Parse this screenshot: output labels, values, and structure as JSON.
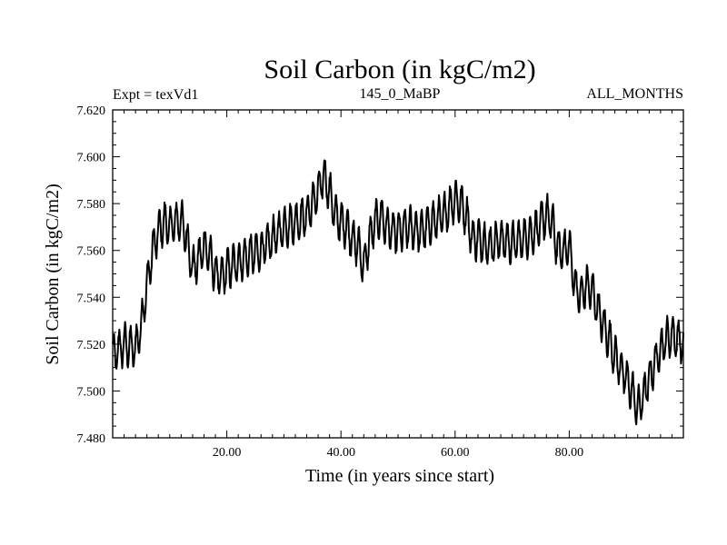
{
  "chart_data": {
    "type": "line",
    "title": "Soil Carbon (in kgC/m2)",
    "subtitle_left": "Expt = texVd1",
    "subtitle_center": "145_0_MaBP",
    "subtitle_right": "ALL_MONTHS",
    "xlabel": "Time (in years since start)",
    "ylabel": "Soil Carbon (in kgC/m2)",
    "xlim": [
      0,
      100
    ],
    "ylim": [
      7.48,
      7.62
    ],
    "x_ticks": [
      20,
      40,
      60,
      80
    ],
    "x_tick_labels": [
      "20.00",
      "40.00",
      "60.00",
      "80.00"
    ],
    "y_ticks": [
      7.48,
      7.5,
      7.52,
      7.54,
      7.56,
      7.58,
      7.6,
      7.62
    ],
    "y_tick_labels": [
      "7.480",
      "7.500",
      "7.520",
      "7.540",
      "7.560",
      "7.580",
      "7.600",
      "7.620"
    ],
    "grid": false,
    "series": [
      {
        "name": "Soil Carbon",
        "color": "#000000",
        "x": [
          0.0,
          2.0,
          4.0,
          5.0,
          6.0,
          7.0,
          8.0,
          9.0,
          10.0,
          11.0,
          12.0,
          13.0,
          14.0,
          15.0,
          16.0,
          17.0,
          18.0,
          19.0,
          20.0,
          22.0,
          24.0,
          26.0,
          28.0,
          30.0,
          32.0,
          34.0,
          35.0,
          36.0,
          37.0,
          38.0,
          39.0,
          40.0,
          41.0,
          42.0,
          43.0,
          44.0,
          45.0,
          46.0,
          47.0,
          48.0,
          49.0,
          50.0,
          52.0,
          54.0,
          56.0,
          58.0,
          60.0,
          61.0,
          62.0,
          63.0,
          64.0,
          66.0,
          68.0,
          70.0,
          72.0,
          74.0,
          76.0,
          77.0,
          78.0,
          79.0,
          80.0,
          81.0,
          82.0,
          83.0,
          84.0,
          85.0,
          86.0,
          87.0,
          88.0,
          89.0,
          90.0,
          91.0,
          92.0,
          93.0,
          94.0,
          95.0,
          96.0,
          97.0,
          98.0,
          99.0,
          100.0
        ],
        "y": [
          7.515,
          7.52,
          7.518,
          7.528,
          7.545,
          7.56,
          7.568,
          7.572,
          7.57,
          7.572,
          7.573,
          7.565,
          7.552,
          7.556,
          7.562,
          7.558,
          7.55,
          7.548,
          7.552,
          7.555,
          7.558,
          7.56,
          7.565,
          7.57,
          7.572,
          7.575,
          7.58,
          7.585,
          7.592,
          7.585,
          7.575,
          7.572,
          7.57,
          7.565,
          7.562,
          7.553,
          7.565,
          7.572,
          7.575,
          7.57,
          7.568,
          7.568,
          7.57,
          7.568,
          7.572,
          7.575,
          7.582,
          7.58,
          7.575,
          7.565,
          7.565,
          7.562,
          7.565,
          7.563,
          7.565,
          7.568,
          7.575,
          7.572,
          7.56,
          7.56,
          7.562,
          7.545,
          7.54,
          7.545,
          7.543,
          7.535,
          7.528,
          7.522,
          7.515,
          7.51,
          7.505,
          7.5,
          7.492,
          7.498,
          7.505,
          7.512,
          7.518,
          7.522,
          7.524,
          7.522,
          7.52
        ]
      }
    ]
  }
}
